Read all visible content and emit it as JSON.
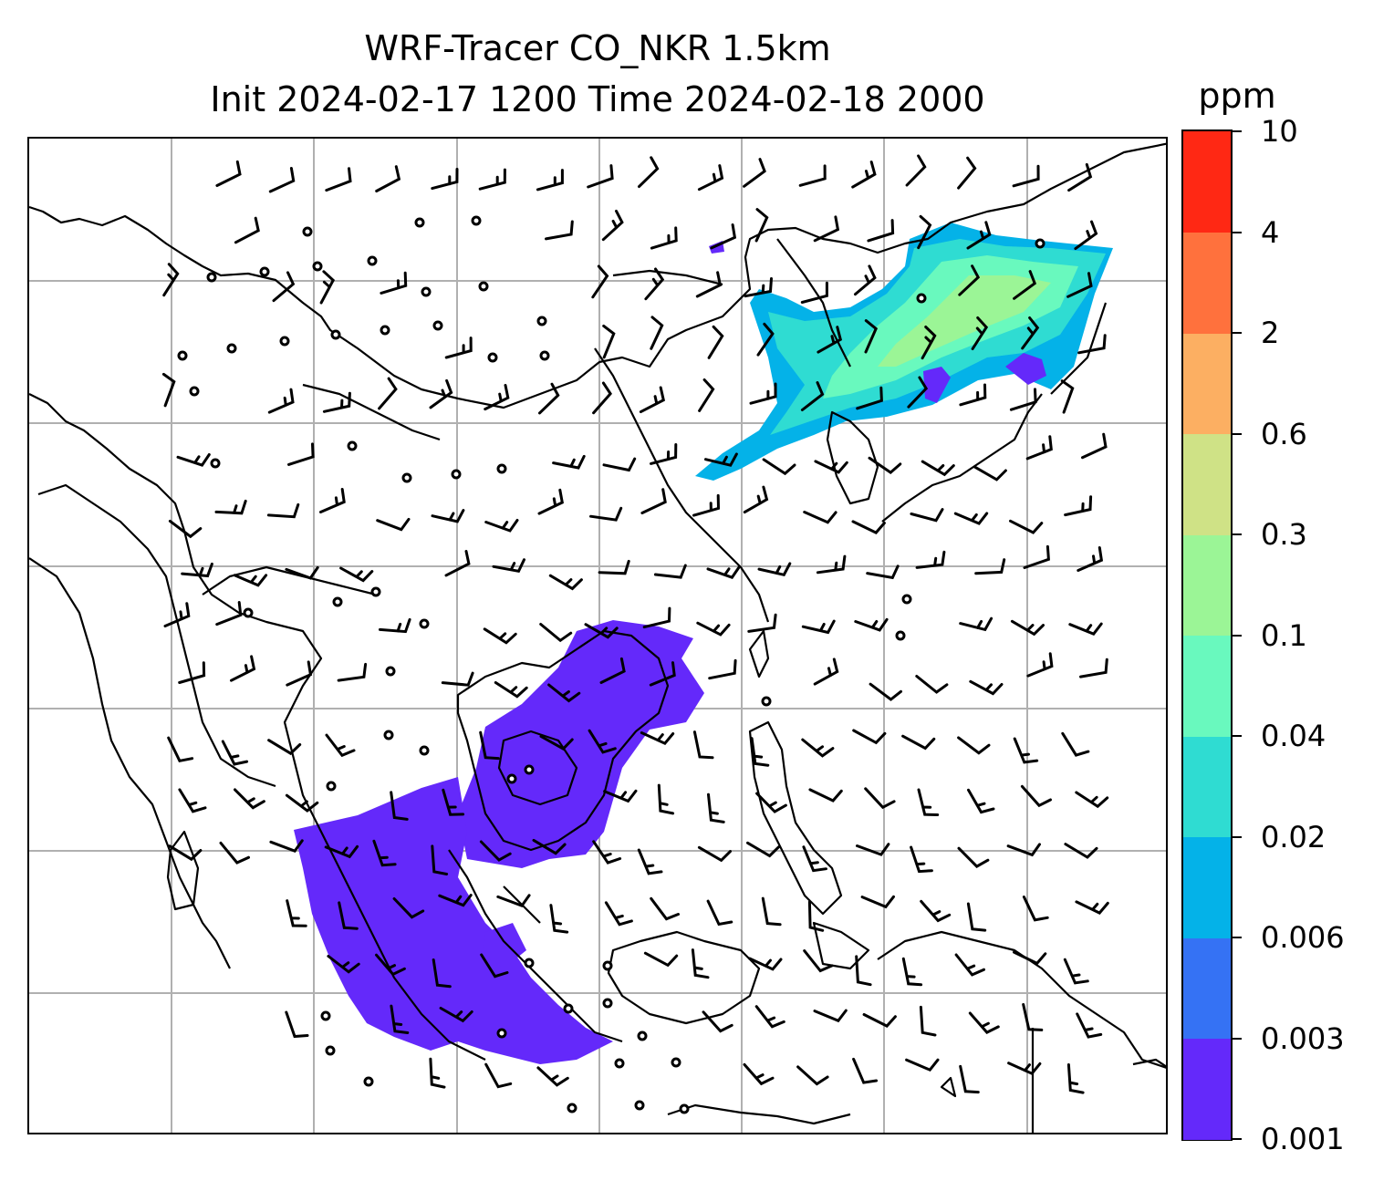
{
  "title": {
    "line1": "WRF-Tracer CO_NKR 1.5km",
    "line2": "Init 2024-02-17 1200 Time 2024-02-18 2000"
  },
  "colorbar": {
    "unit": "ppm",
    "levels": [
      "0.001",
      "0.003",
      "0.006",
      "0.02",
      "0.04",
      "0.1",
      "0.3",
      "0.6",
      "2",
      "4",
      "10"
    ],
    "colors": [
      "#6429fa",
      "#3572f4",
      "#04b2e8",
      "#2fdcd2",
      "#69f9be",
      "#9bf596",
      "#cfe286",
      "#fcaf62",
      "#ff713d",
      "#ff2814"
    ]
  },
  "map": {
    "gridlines": true,
    "coastline_color": "#000000",
    "grid_color": "#b0b0b0"
  }
}
